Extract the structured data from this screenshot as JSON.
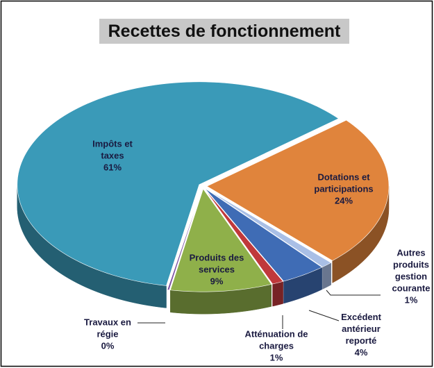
{
  "chart_data": {
    "type": "pie",
    "title": "Recettes de fonctionnement",
    "categories": [
      "Dotations et participations",
      "Autres produits gestion courante",
      "Excédent antérieur reporté",
      "Atténuation de charges",
      "Produits des services",
      "Travaux en régie",
      "Impôts et taxes"
    ],
    "values": [
      24,
      1,
      4,
      1,
      9,
      0,
      61
    ],
    "value_labels": [
      "24%",
      "1%",
      "4%",
      "1%",
      "9%",
      "0%",
      "61%"
    ],
    "colors": [
      "#e0843c",
      "#a9bfe6",
      "#3f6cb5",
      "#c0393b",
      "#8fb04a",
      "#7a4fa0",
      "#3a9ab8"
    ]
  }
}
